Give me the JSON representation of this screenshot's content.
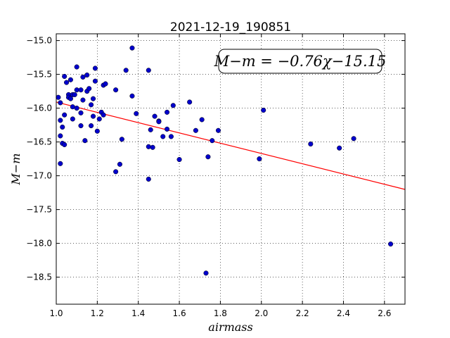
{
  "chart_data": {
    "type": "scatter",
    "title": "2021-12-19_190851",
    "xlabel": "airmass",
    "ylabel": "M−m",
    "xlim": [
      1.0,
      2.7
    ],
    "ylim": [
      -18.9,
      -14.9
    ],
    "y_inverted": true,
    "grid": true,
    "x_ticks": [
      "1.0",
      "1.2",
      "1.4",
      "1.6",
      "1.8",
      "2.0",
      "2.2",
      "2.4",
      "2.6"
    ],
    "x_tick_values": [
      1.0,
      1.2,
      1.4,
      1.6,
      1.8,
      2.0,
      2.2,
      2.4,
      2.6
    ],
    "y_ticks": [
      "−15.0",
      "−15.5",
      "−16.0",
      "−16.5",
      "−17.0",
      "−17.5",
      "−18.0",
      "−18.5"
    ],
    "y_tick_values": [
      -15.0,
      -15.5,
      -16.0,
      -16.5,
      -17.0,
      -17.5,
      -18.0,
      -18.5
    ],
    "annotation": "M−m = −0.76χ−15.15",
    "annotation_position": "top-right",
    "fit": {
      "slope": -0.76,
      "intercept": -15.15,
      "x_range": [
        1.0,
        2.7
      ],
      "color": "#ff0000"
    },
    "marker_color": "#0000cc",
    "points": [
      {
        "x": 1.01,
        "y": -15.84
      },
      {
        "x": 1.02,
        "y": -15.92
      },
      {
        "x": 1.02,
        "y": -16.18
      },
      {
        "x": 1.02,
        "y": -16.41
      },
      {
        "x": 1.02,
        "y": -16.82
      },
      {
        "x": 1.03,
        "y": -16.52
      },
      {
        "x": 1.03,
        "y": -16.28
      },
      {
        "x": 1.04,
        "y": -16.1
      },
      {
        "x": 1.04,
        "y": -16.54
      },
      {
        "x": 1.04,
        "y": -15.53
      },
      {
        "x": 1.05,
        "y": -15.62
      },
      {
        "x": 1.06,
        "y": -15.8
      },
      {
        "x": 1.06,
        "y": -15.84
      },
      {
        "x": 1.07,
        "y": -15.58
      },
      {
        "x": 1.07,
        "y": -15.86
      },
      {
        "x": 1.08,
        "y": -15.8
      },
      {
        "x": 1.08,
        "y": -15.98
      },
      {
        "x": 1.08,
        "y": -16.16
      },
      {
        "x": 1.09,
        "y": -15.8
      },
      {
        "x": 1.1,
        "y": -15.39
      },
      {
        "x": 1.1,
        "y": -15.73
      },
      {
        "x": 1.1,
        "y": -16.0
      },
      {
        "x": 1.12,
        "y": -15.73
      },
      {
        "x": 1.12,
        "y": -16.07
      },
      {
        "x": 1.12,
        "y": -16.26
      },
      {
        "x": 1.13,
        "y": -15.54
      },
      {
        "x": 1.13,
        "y": -15.88
      },
      {
        "x": 1.14,
        "y": -16.48
      },
      {
        "x": 1.15,
        "y": -15.75
      },
      {
        "x": 1.15,
        "y": -15.51
      },
      {
        "x": 1.16,
        "y": -15.71
      },
      {
        "x": 1.17,
        "y": -15.95
      },
      {
        "x": 1.17,
        "y": -16.26
      },
      {
        "x": 1.18,
        "y": -16.12
      },
      {
        "x": 1.18,
        "y": -15.86
      },
      {
        "x": 1.19,
        "y": -15.6
      },
      {
        "x": 1.19,
        "y": -15.41
      },
      {
        "x": 1.2,
        "y": -16.34
      },
      {
        "x": 1.21,
        "y": -16.16
      },
      {
        "x": 1.22,
        "y": -16.06
      },
      {
        "x": 1.23,
        "y": -16.1
      },
      {
        "x": 1.23,
        "y": -15.66
      },
      {
        "x": 1.24,
        "y": -15.64
      },
      {
        "x": 1.29,
        "y": -15.73
      },
      {
        "x": 1.29,
        "y": -16.94
      },
      {
        "x": 1.31,
        "y": -16.83
      },
      {
        "x": 1.32,
        "y": -16.46
      },
      {
        "x": 1.34,
        "y": -15.44
      },
      {
        "x": 1.37,
        "y": -15.11
      },
      {
        "x": 1.37,
        "y": -15.82
      },
      {
        "x": 1.39,
        "y": -16.08
      },
      {
        "x": 1.45,
        "y": -16.57
      },
      {
        "x": 1.45,
        "y": -17.05
      },
      {
        "x": 1.45,
        "y": -15.44
      },
      {
        "x": 1.46,
        "y": -16.32
      },
      {
        "x": 1.47,
        "y": -16.58
      },
      {
        "x": 1.48,
        "y": -16.12
      },
      {
        "x": 1.5,
        "y": -16.19
      },
      {
        "x": 1.5,
        "y": -16.2
      },
      {
        "x": 1.52,
        "y": -16.42
      },
      {
        "x": 1.54,
        "y": -16.31
      },
      {
        "x": 1.54,
        "y": -16.06
      },
      {
        "x": 1.56,
        "y": -16.42
      },
      {
        "x": 1.57,
        "y": -15.96
      },
      {
        "x": 1.6,
        "y": -16.76
      },
      {
        "x": 1.65,
        "y": -15.91
      },
      {
        "x": 1.68,
        "y": -16.33
      },
      {
        "x": 1.71,
        "y": -16.17
      },
      {
        "x": 1.73,
        "y": -18.44
      },
      {
        "x": 1.74,
        "y": -16.72
      },
      {
        "x": 1.76,
        "y": -16.48
      },
      {
        "x": 1.79,
        "y": -16.33
      },
      {
        "x": 1.99,
        "y": -16.75
      },
      {
        "x": 2.01,
        "y": -16.03
      },
      {
        "x": 2.24,
        "y": -16.53
      },
      {
        "x": 2.38,
        "y": -16.59
      },
      {
        "x": 2.45,
        "y": -16.45
      },
      {
        "x": 2.63,
        "y": -18.01
      }
    ]
  }
}
